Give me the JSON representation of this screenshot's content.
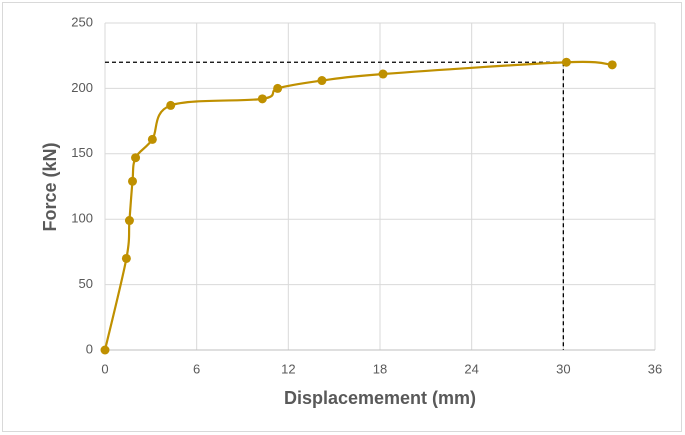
{
  "chart_data": {
    "type": "scatter",
    "x_label": "Displacemement (mm)",
    "y_label": "Force (kN)",
    "x": [
      0,
      1.4,
      1.6,
      1.8,
      2.0,
      3.1,
      4.3,
      10.3,
      11.3,
      14.2,
      18.2,
      30.2,
      33.2
    ],
    "values": [
      0,
      70,
      99,
      129,
      147,
      161,
      187,
      192,
      200,
      206,
      211,
      220,
      218
    ],
    "color": "#bf9000",
    "xlim": [
      0,
      36
    ],
    "xticks": [
      0,
      6,
      12,
      18,
      24,
      30,
      36
    ],
    "ylim": [
      0,
      250
    ],
    "yticks": [
      0,
      50,
      100,
      150,
      200,
      250
    ],
    "grid": true,
    "smooth": true,
    "reference_point": {
      "x": 30,
      "y": 220
    }
  }
}
